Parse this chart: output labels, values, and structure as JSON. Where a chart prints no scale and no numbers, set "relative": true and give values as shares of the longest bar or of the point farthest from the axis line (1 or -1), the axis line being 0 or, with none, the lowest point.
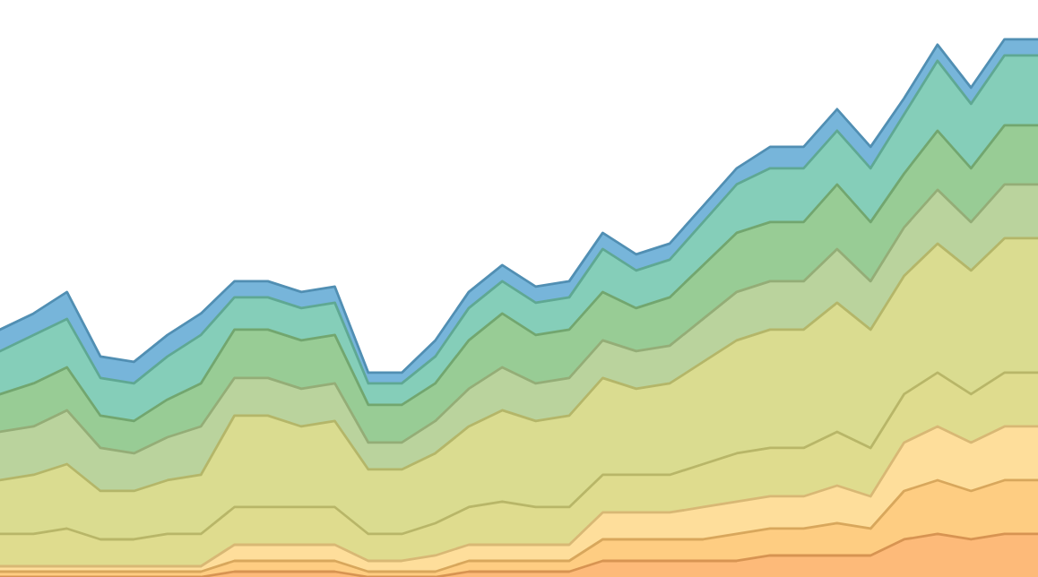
{
  "chart_data": {
    "type": "area",
    "stacked": true,
    "relative": true,
    "categories": [
      null,
      null,
      null,
      null,
      null,
      null,
      null,
      null,
      null,
      null,
      null,
      null,
      null,
      null,
      null,
      null,
      null,
      null,
      null,
      null,
      null,
      null,
      null,
      null,
      null,
      null,
      null,
      null,
      null,
      null,
      null,
      null
    ],
    "series": [
      {
        "color": "#fdae61",
        "values": [
          0,
          0,
          0,
          0,
          0,
          0,
          0,
          0.01,
          0.01,
          0.01,
          0.01,
          0,
          0,
          0,
          0.01,
          0.01,
          0.01,
          0.01,
          0.03,
          0.03,
          0.03,
          0.03,
          0.03,
          0.04,
          0.04,
          0.04,
          0.04,
          0.07,
          0.08,
          0.07,
          0.08,
          0.08
        ]
      },
      {
        "color": "#fec46c",
        "values": [
          0.01,
          0.01,
          0.01,
          0.01,
          0.01,
          0.01,
          0.01,
          0.02,
          0.02,
          0.02,
          0.02,
          0.01,
          0.01,
          0.01,
          0.02,
          0.02,
          0.02,
          0.02,
          0.04,
          0.04,
          0.04,
          0.04,
          0.05,
          0.05,
          0.05,
          0.06,
          0.05,
          0.09,
          0.1,
          0.09,
          0.1,
          0.1
        ]
      },
      {
        "color": "#fed88a",
        "values": [
          0.01,
          0.01,
          0.01,
          0.01,
          0.01,
          0.01,
          0.01,
          0.03,
          0.03,
          0.03,
          0.03,
          0.02,
          0.02,
          0.03,
          0.03,
          0.03,
          0.03,
          0.03,
          0.05,
          0.05,
          0.05,
          0.06,
          0.06,
          0.06,
          0.06,
          0.07,
          0.06,
          0.09,
          0.1,
          0.09,
          0.1,
          0.1
        ]
      },
      {
        "color": "#d9d67a",
        "values": [
          0.06,
          0.06,
          0.07,
          0.05,
          0.05,
          0.06,
          0.06,
          0.07,
          0.07,
          0.07,
          0.07,
          0.05,
          0.05,
          0.06,
          0.07,
          0.08,
          0.07,
          0.07,
          0.07,
          0.07,
          0.07,
          0.08,
          0.09,
          0.09,
          0.09,
          0.1,
          0.09,
          0.09,
          0.1,
          0.09,
          0.1,
          0.1
        ]
      },
      {
        "color": "#d4d67c",
        "values": [
          0.1,
          0.11,
          0.12,
          0.09,
          0.09,
          0.1,
          0.11,
          0.17,
          0.17,
          0.15,
          0.16,
          0.12,
          0.12,
          0.13,
          0.15,
          0.17,
          0.16,
          0.17,
          0.18,
          0.16,
          0.17,
          0.19,
          0.21,
          0.22,
          0.22,
          0.24,
          0.22,
          0.22,
          0.24,
          0.23,
          0.25,
          0.25
        ]
      },
      {
        "color": "#aecb8c",
        "values": [
          0.09,
          0.09,
          0.1,
          0.08,
          0.07,
          0.08,
          0.09,
          0.07,
          0.07,
          0.07,
          0.07,
          0.05,
          0.05,
          0.06,
          0.07,
          0.08,
          0.07,
          0.07,
          0.07,
          0.07,
          0.07,
          0.08,
          0.09,
          0.09,
          0.09,
          0.1,
          0.09,
          0.09,
          0.1,
          0.09,
          0.1,
          0.1
        ]
      },
      {
        "color": "#86c383",
        "values": [
          0.07,
          0.08,
          0.08,
          0.06,
          0.06,
          0.07,
          0.08,
          0.09,
          0.09,
          0.09,
          0.09,
          0.07,
          0.07,
          0.07,
          0.09,
          0.1,
          0.09,
          0.09,
          0.09,
          0.08,
          0.09,
          0.1,
          0.11,
          0.11,
          0.11,
          0.12,
          0.11,
          0.1,
          0.11,
          0.1,
          0.11,
          0.11
        ]
      },
      {
        "color": "#70c6ad",
        "values": [
          0.08,
          0.09,
          0.09,
          0.07,
          0.07,
          0.08,
          0.09,
          0.06,
          0.06,
          0.06,
          0.06,
          0.04,
          0.04,
          0.05,
          0.06,
          0.06,
          0.06,
          0.06,
          0.08,
          0.07,
          0.07,
          0.08,
          0.09,
          0.1,
          0.1,
          0.1,
          0.1,
          0.11,
          0.13,
          0.12,
          0.13,
          0.13
        ]
      },
      {
        "color": "#5fa8d3",
        "values": [
          0.04,
          0.04,
          0.05,
          0.04,
          0.04,
          0.04,
          0.04,
          0.03,
          0.03,
          0.03,
          0.03,
          0.02,
          0.02,
          0.03,
          0.03,
          0.03,
          0.03,
          0.03,
          0.03,
          0.03,
          0.03,
          0.03,
          0.03,
          0.04,
          0.04,
          0.04,
          0.04,
          0.03,
          0.03,
          0.03,
          0.03,
          0.03
        ]
      }
    ]
  }
}
